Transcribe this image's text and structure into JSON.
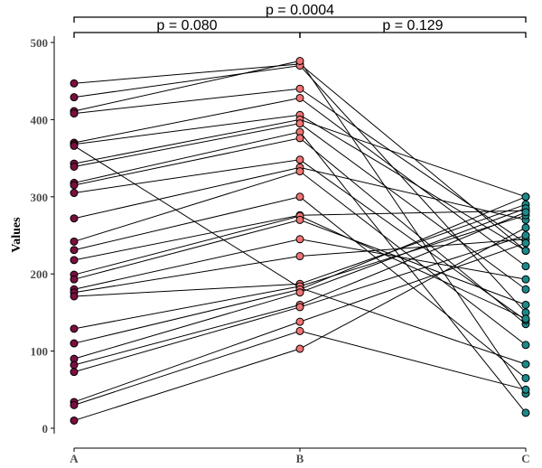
{
  "chart_data": {
    "type": "scatter",
    "subtype": "paired-dot-plot",
    "title": "",
    "xlabel": "",
    "ylabel": "Values",
    "ylim": [
      0,
      500
    ],
    "yticks": [
      0,
      100,
      200,
      300,
      400,
      500
    ],
    "categories": [
      "A",
      "B",
      "C"
    ],
    "colors": {
      "A": "#7a0f3f",
      "B": "#f07474",
      "C": "#1a8a8a"
    },
    "grid": false,
    "legend": "none",
    "pairs": [
      [
        447,
        472,
        230
      ],
      [
        429,
        470,
        150
      ],
      [
        411,
        476,
        45
      ],
      [
        408,
        440,
        240
      ],
      [
        370,
        428,
        210
      ],
      [
        368,
        406,
        230
      ],
      [
        366,
        182,
        83
      ],
      [
        343,
        400,
        300
      ],
      [
        339,
        395,
        180
      ],
      [
        318,
        384,
        20
      ],
      [
        315,
        376,
        135
      ],
      [
        305,
        348,
        140
      ],
      [
        272,
        338,
        270
      ],
      [
        242,
        333,
        108
      ],
      [
        231,
        300,
        65
      ],
      [
        218,
        276,
        282
      ],
      [
        199,
        275,
        142
      ],
      [
        193,
        270,
        160
      ],
      [
        180,
        245,
        193
      ],
      [
        176,
        223,
        245
      ],
      [
        171,
        187,
        290
      ],
      [
        129,
        184,
        276
      ],
      [
        110,
        180,
        300
      ],
      [
        90,
        176,
        285
      ],
      [
        82,
        160,
        280
      ],
      [
        73,
        157,
        250
      ],
      [
        34,
        138,
        240
      ],
      [
        30,
        126,
        50
      ],
      [
        10,
        103,
        260
      ]
    ],
    "annotations": [
      {
        "from": "A",
        "to": "B",
        "text": "p = 0.080",
        "level": 1
      },
      {
        "from": "B",
        "to": "C",
        "text": "p = 0.129",
        "level": 1
      },
      {
        "from": "A",
        "to": "C",
        "text": "p = 0.0004",
        "level": 2
      }
    ]
  }
}
